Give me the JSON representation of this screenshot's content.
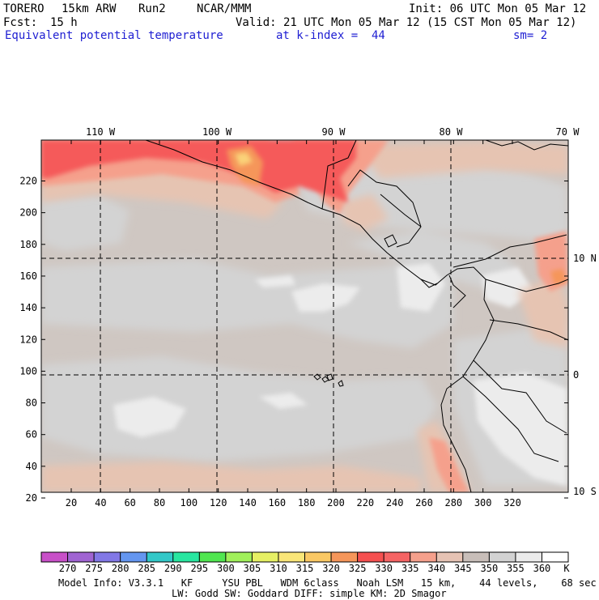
{
  "header": {
    "model": "TORERO",
    "resolution": "15km ARW",
    "run": "Run2",
    "org": "NCAR/MMM",
    "init": "Init: 06 UTC Mon 05 Mar 12",
    "fcst_label": "Fcst:",
    "fcst_value": "15 h",
    "valid": "Valid: 21 UTC Mon 05 Mar 12 (15 CST Mon 05 Mar 12)",
    "field": "Equivalent potential temperature",
    "level": "at k-index =  44",
    "smoothing": "sm= 2"
  },
  "map": {
    "top_labels": [
      "110 W",
      "100 W",
      "90 W",
      "80 W",
      "70 W"
    ],
    "right_labels": [
      "10 N",
      "0",
      "10 S"
    ],
    "y_ticks": [
      "20",
      "40",
      "60",
      "80",
      "100",
      "120",
      "140",
      "160",
      "180",
      "200",
      "220"
    ],
    "x_ticks": [
      "20",
      "40",
      "60",
      "80",
      "100",
      "120",
      "140",
      "160",
      "180",
      "200",
      "220",
      "240",
      "260",
      "280",
      "300",
      "320"
    ]
  },
  "colorbar": {
    "levels": [
      "270",
      "275",
      "280",
      "285",
      "290",
      "295",
      "300",
      "305",
      "310",
      "315",
      "320",
      "325",
      "330",
      "335",
      "340",
      "345",
      "350",
      "355",
      "360"
    ],
    "unit": "K",
    "colors": [
      "#c850c8",
      "#a064d2",
      "#8278e6",
      "#6496f0",
      "#32c8c8",
      "#28e6a0",
      "#50e650",
      "#a0f05a",
      "#e6f064",
      "#fae678",
      "#fac864",
      "#f5965a",
      "#f55050",
      "#f56464",
      "#f5a08c",
      "#e6c3b4",
      "#c8beb9",
      "#d2d2d2",
      "#ebebeb",
      "#ffffff"
    ]
  },
  "footer": {
    "line1": "Model Info: V3.3.1   KF     YSU PBL   WDM 6class   Noah LSM   15 km,    44 levels,    68 sec",
    "line2": "LW: Godd SW: Goddard DIFF: simple KM: 2D Smagor"
  }
}
